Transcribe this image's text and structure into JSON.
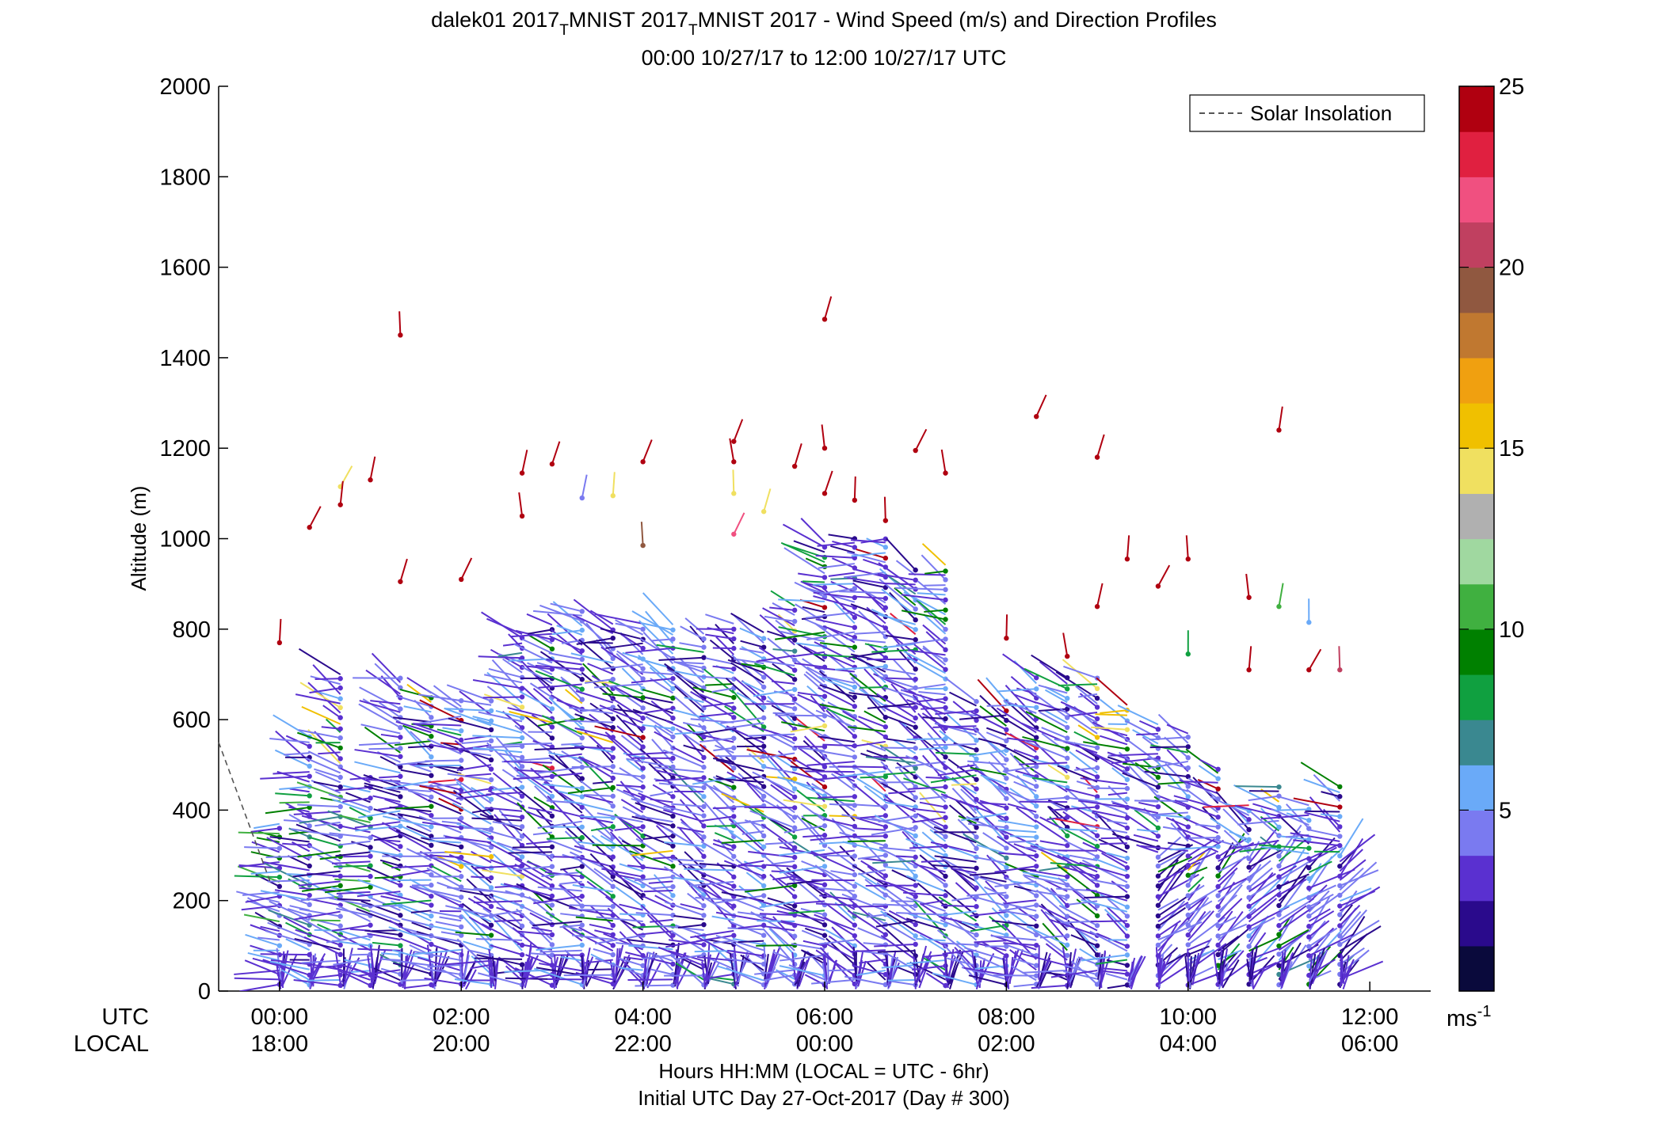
{
  "chart_data": {
    "type": "wind-barb-profile",
    "title_line1": "dalek01 2017",
    "title_sub1": "T",
    "title_mid": "MNIST 2017",
    "title_sub2": "T",
    "title_end": "MNIST 2017 - Wind Speed (m/s) and Direction Profiles",
    "subtitle": "00:00 10/27/17 to 12:00 10/27/17  UTC",
    "ylabel": "Altitude (m)",
    "ylim": [
      0,
      2000
    ],
    "yticks": [
      "0",
      "200",
      "400",
      "600",
      "800",
      "1000",
      "1200",
      "1400",
      "1600",
      "1800",
      "2000"
    ],
    "xlim_hours": [
      -0.67,
      12.67
    ],
    "x_row_utc_label": "UTC",
    "x_row_local_label": "LOCAL",
    "xticks_utc": [
      "00:00",
      "02:00",
      "04:00",
      "06:00",
      "08:00",
      "10:00",
      "12:00"
    ],
    "xticks_local": [
      "18:00",
      "20:00",
      "22:00",
      "00:00",
      "02:00",
      "04:00",
      "06:00"
    ],
    "xlabel_line1": "Hours HH:MM  (LOCAL = UTC - 6hr)",
    "xlabel_line2": "Initial UTC Day 27-Oct-2017 (Day # 300)",
    "legend_label": "Solar Insolation",
    "legend_position": "top-right",
    "colorbar_ticks": [
      "5",
      "10",
      "15",
      "20",
      "25"
    ],
    "colorbar_unit": "ms",
    "colorbar_unit_exp": "-1",
    "colorbar_range": [
      0,
      25
    ],
    "colormap": [
      "#0a0a3c",
      "#2a0a8c",
      "#5a30d0",
      "#7a7af0",
      "#6aaaf8",
      "#3a8890",
      "#10a040",
      "#008000",
      "#40b040",
      "#a0d8a0",
      "#b0b0b0",
      "#f0e060",
      "#f0c000",
      "#f0a010",
      "#c07830",
      "#905840",
      "#c04060",
      "#f05080",
      "#e02040",
      "#b00010"
    ],
    "solar_insolation": {
      "x": [
        -0.67,
        -0.1
      ],
      "y": [
        550,
        240
      ]
    },
    "profile_times_utc": [
      0,
      0.33,
      0.67,
      1.0,
      1.33,
      1.67,
      2.0,
      2.33,
      2.67,
      3.0,
      3.33,
      3.67,
      4.0,
      4.33,
      4.67,
      5.0,
      5.33,
      5.67,
      6.0,
      6.33,
      6.67,
      7.0,
      7.33,
      7.67,
      8.0,
      8.33,
      8.67,
      9.0,
      9.33,
      9.67,
      10.0,
      10.33,
      10.67,
      11.0,
      11.33,
      11.67
    ],
    "profile_top_m": [
      380,
      570,
      710,
      480,
      700,
      670,
      650,
      650,
      800,
      820,
      850,
      820,
      820,
      820,
      800,
      820,
      800,
      860,
      1000,
      1010,
      1010,
      940,
      950,
      650,
      650,
      700,
      700,
      700,
      640,
      600,
      580,
      500,
      420,
      460,
      420,
      460
    ],
    "isolated_points": [
      {
        "t": 0.0,
        "z": 770,
        "s": 24
      },
      {
        "t": 0.33,
        "z": 1025,
        "s": 24
      },
      {
        "t": 0.67,
        "z": 1115,
        "s": 14
      },
      {
        "t": 0.67,
        "z": 1075,
        "s": 24
      },
      {
        "t": 1.0,
        "z": 1130,
        "s": 24
      },
      {
        "t": 1.33,
        "z": 1450,
        "s": 24
      },
      {
        "t": 1.33,
        "z": 905,
        "s": 24
      },
      {
        "t": 2.0,
        "z": 910,
        "s": 24
      },
      {
        "t": 2.67,
        "z": 1145,
        "s": 24
      },
      {
        "t": 2.67,
        "z": 1050,
        "s": 24
      },
      {
        "t": 3.0,
        "z": 1165,
        "s": 24
      },
      {
        "t": 3.33,
        "z": 1090,
        "s": 4
      },
      {
        "t": 3.67,
        "z": 1095,
        "s": 14
      },
      {
        "t": 4.0,
        "z": 1170,
        "s": 24
      },
      {
        "t": 4.0,
        "z": 985,
        "s": 19
      },
      {
        "t": 5.0,
        "z": 1215,
        "s": 24
      },
      {
        "t": 5.0,
        "z": 1170,
        "s": 24
      },
      {
        "t": 5.0,
        "z": 1010,
        "s": 22
      },
      {
        "t": 5.0,
        "z": 1100,
        "s": 14
      },
      {
        "t": 5.33,
        "z": 1060,
        "s": 14
      },
      {
        "t": 5.67,
        "z": 1160,
        "s": 24
      },
      {
        "t": 6.0,
        "z": 1200,
        "s": 24
      },
      {
        "t": 6.0,
        "z": 1100,
        "s": 24
      },
      {
        "t": 6.0,
        "z": 1485,
        "s": 24
      },
      {
        "t": 6.33,
        "z": 1085,
        "s": 24
      },
      {
        "t": 6.67,
        "z": 1040,
        "s": 24
      },
      {
        "t": 7.0,
        "z": 1195,
        "s": 24
      },
      {
        "t": 7.33,
        "z": 1145,
        "s": 24
      },
      {
        "t": 8.0,
        "z": 780,
        "s": 24
      },
      {
        "t": 8.33,
        "z": 1270,
        "s": 24
      },
      {
        "t": 8.67,
        "z": 740,
        "s": 24
      },
      {
        "t": 9.0,
        "z": 1180,
        "s": 24
      },
      {
        "t": 9.0,
        "z": 850,
        "s": 24
      },
      {
        "t": 9.33,
        "z": 955,
        "s": 24
      },
      {
        "t": 9.67,
        "z": 895,
        "s": 24
      },
      {
        "t": 10.0,
        "z": 955,
        "s": 24
      },
      {
        "t": 10.0,
        "z": 745,
        "s": 8
      },
      {
        "t": 10.67,
        "z": 870,
        "s": 24
      },
      {
        "t": 10.67,
        "z": 710,
        "s": 24
      },
      {
        "t": 11.0,
        "z": 1240,
        "s": 24
      },
      {
        "t": 11.0,
        "z": 850,
        "s": 10
      },
      {
        "t": 11.33,
        "z": 815,
        "s": 5
      },
      {
        "t": 11.33,
        "z": 710,
        "s": 24
      },
      {
        "t": 11.67,
        "z": 710,
        "s": 21
      }
    ]
  }
}
